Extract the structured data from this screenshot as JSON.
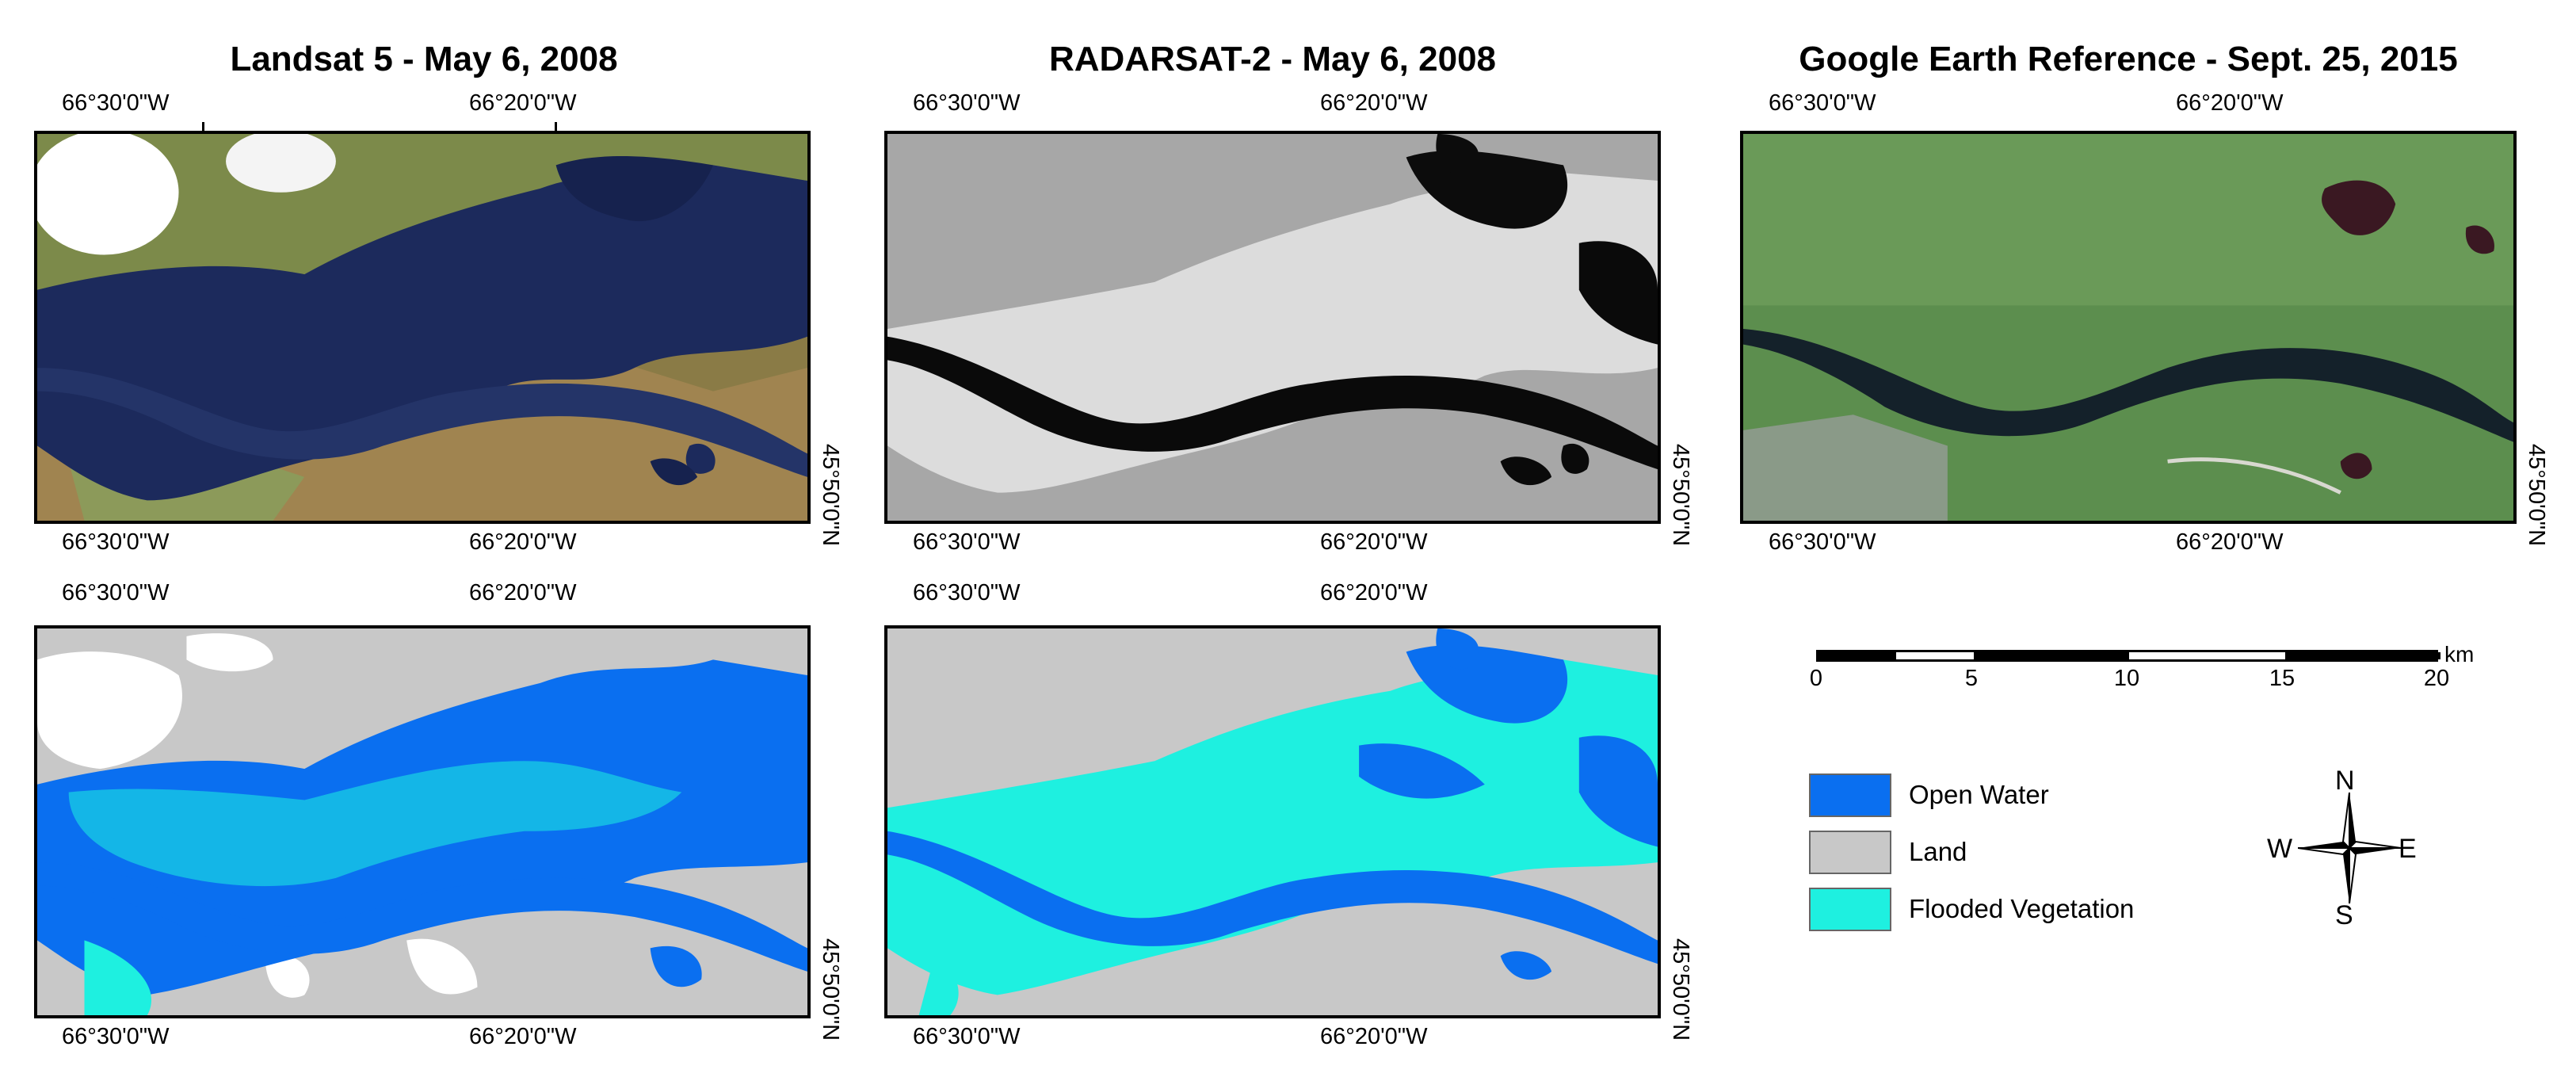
{
  "panels": {
    "landsat": {
      "title": "Landsat 5 - May 6, 2008",
      "top_left_lon": "66°30'0\"W",
      "top_mid_lon": "66°20'0\"W",
      "bottom_left_lon": "66°30'0\"W",
      "bottom_mid_lon": "66°20'0\"W",
      "right_lat": "45°50'0\"N"
    },
    "radarsat": {
      "title": "RADARSAT-2 - May 6, 2008",
      "top_left_lon": "66°30'0\"W",
      "top_mid_lon": "66°20'0\"W",
      "bottom_left_lon": "66°30'0\"W",
      "bottom_mid_lon": "66°20'0\"W",
      "right_lat": "45°50'0\"N"
    },
    "google": {
      "title": "Google Earth Reference - Sept. 25, 2015",
      "top_left_lon": "66°30'0\"W",
      "top_mid_lon": "66°20'0\"W",
      "bottom_left_lon": "66°30'0\"W",
      "bottom_mid_lon": "66°20'0\"W",
      "right_lat": "45°50'0\"N"
    },
    "landsat_class": {
      "top_left_lon": "66°30'0\"W",
      "top_mid_lon": "66°20'0\"W",
      "bottom_left_lon": "66°30'0\"W",
      "bottom_mid_lon": "66°20'0\"W",
      "right_lat": "45°50'0\"N"
    },
    "radarsat_class": {
      "top_left_lon": "66°30'0\"W",
      "top_mid_lon": "66°20'0\"W",
      "bottom_left_lon": "66°30'0\"W",
      "bottom_mid_lon": "66°20'0\"W",
      "right_lat": "45°50'0\"N"
    }
  },
  "scale_bar": {
    "unit": "km",
    "ticks": [
      "0",
      "5",
      "10",
      "15",
      "20"
    ]
  },
  "legend": {
    "items": [
      {
        "label": "Open Water",
        "color": "#0a6ff0"
      },
      {
        "label": "Land",
        "color": "#c8c8c8"
      },
      {
        "label": "Flooded Vegetation",
        "color": "#1ef0e0"
      }
    ]
  },
  "compass": {
    "n": "N",
    "s": "S",
    "e": "E",
    "w": "W"
  },
  "colors": {
    "open_water": "#0a6ff0",
    "land": "#c8c8c8",
    "flooded_vegetation": "#1ef0e0",
    "cloud": "#ffffff"
  }
}
